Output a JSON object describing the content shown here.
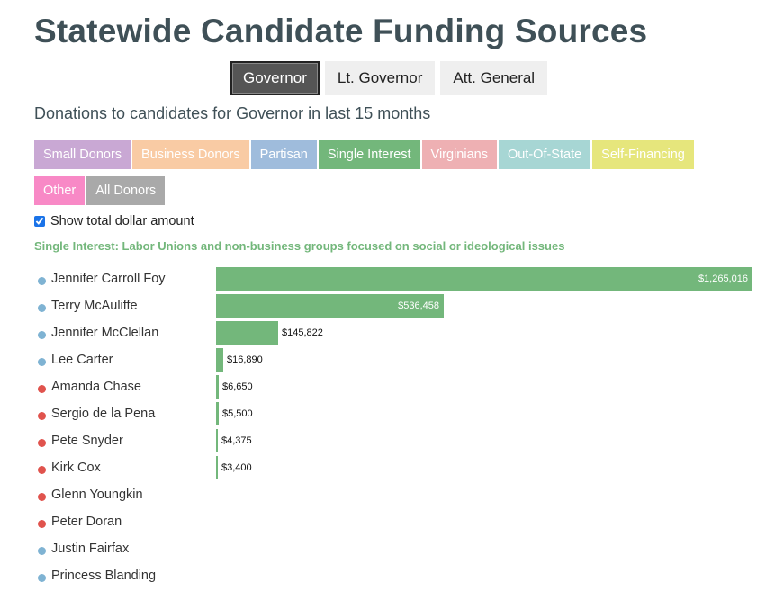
{
  "page": {
    "title": "Statewide Candidate Funding Sources"
  },
  "office_tabs": [
    {
      "label": "Governor",
      "active": true
    },
    {
      "label": "Lt. Governor",
      "active": false
    },
    {
      "label": "Att. General",
      "active": false
    }
  ],
  "subtitle": "Donations to candidates for Governor in last 15 months",
  "filters": [
    {
      "label": "Small Donors",
      "color": "#c9a8d4",
      "active": false
    },
    {
      "label": "Business Donors",
      "color": "#f9cba4",
      "active": false
    },
    {
      "label": "Partisan",
      "color": "#9fbcdc",
      "active": false
    },
    {
      "label": "Single Interest",
      "color": "#73b77b",
      "active": true
    },
    {
      "label": "Virginians",
      "color": "#eeb0b3",
      "active": false
    },
    {
      "label": "Out-Of-State",
      "color": "#a7d6d4",
      "active": false
    },
    {
      "label": "Self-Financing",
      "color": "#e6e67c",
      "active": false
    },
    {
      "label": "Other",
      "color": "#f889c6",
      "active": false
    },
    {
      "label": "All Donors",
      "color": "#a9a9a9",
      "active": false
    }
  ],
  "show_total": {
    "label": "Show total dollar amount",
    "checked": true
  },
  "category_note": "Single Interest: Labor Unions and non-business groups focused on social or ideological issues",
  "party_colors": {
    "blue": "#7fb3d3",
    "red": "#e0534d"
  },
  "chart_data": {
    "type": "bar",
    "orientation": "horizontal",
    "bar_color": "#73b77b",
    "xlim": [
      0,
      1265016
    ],
    "categories": [
      "Jennifer Carroll Foy",
      "Terry McAuliffe",
      "Jennifer McClellan",
      "Lee Carter",
      "Amanda Chase",
      "Sergio de la Pena",
      "Pete Snyder",
      "Kirk Cox",
      "Glenn Youngkin",
      "Peter Doran",
      "Justin Fairfax",
      "Princess Blanding"
    ],
    "party": [
      "blue",
      "blue",
      "blue",
      "blue",
      "red",
      "red",
      "red",
      "red",
      "red",
      "red",
      "blue",
      "blue"
    ],
    "values": [
      1265016,
      536458,
      145822,
      16890,
      6650,
      5500,
      4375,
      3400,
      0,
      0,
      0,
      0
    ],
    "value_labels": [
      "$1,265,016",
      "$536,458",
      "$145,822",
      "$16,890",
      "$6,650",
      "$5,500",
      "$4,375",
      "$3,400",
      "",
      "",
      "",
      ""
    ]
  }
}
